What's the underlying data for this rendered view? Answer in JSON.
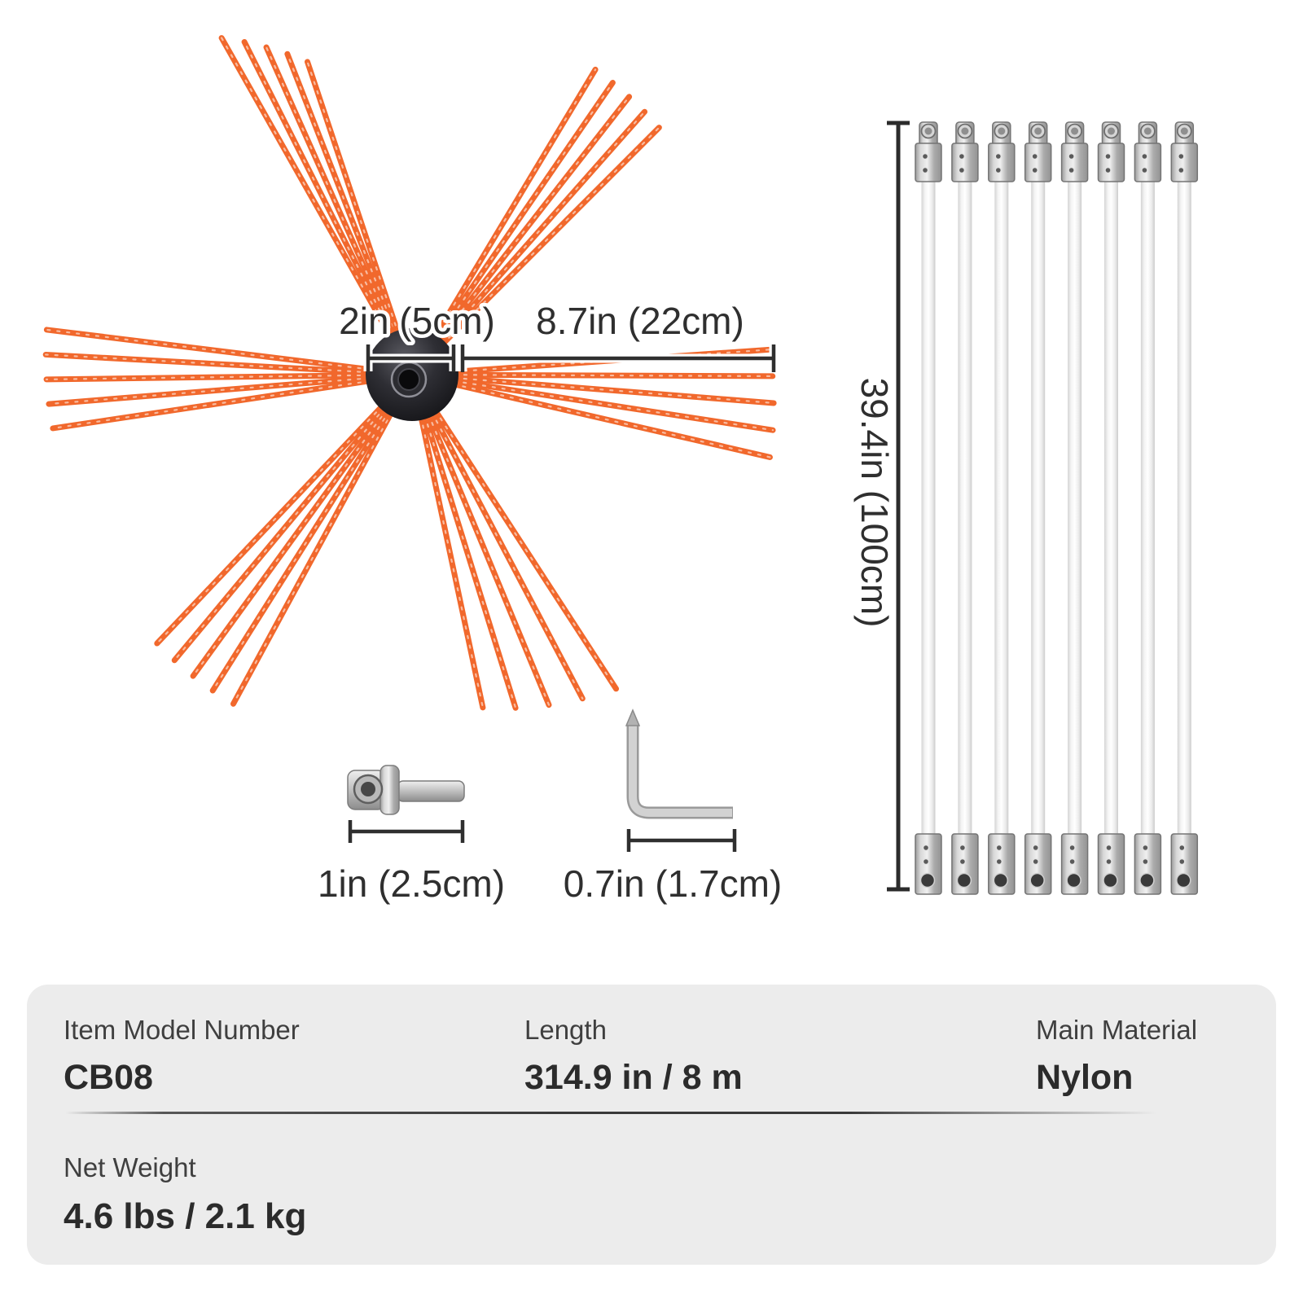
{
  "brush": {
    "hub_dim_label": "2in (5cm)",
    "bristle_dim_label": "8.7in (22cm)"
  },
  "rods": {
    "count": 8,
    "length_label": "39.4in (100cm)"
  },
  "adapter": {
    "dim_label": "1in (2.5cm)"
  },
  "hex_key": {
    "dim_label": "0.7in (1.7cm)"
  },
  "specs": {
    "row1": [
      {
        "label": "Item Model Number",
        "value": "CB08"
      },
      {
        "label": "Length",
        "value": "314.9 in / 8 m"
      },
      {
        "label": "Main Material",
        "value": "Nylon"
      }
    ],
    "row2": [
      {
        "label": "Net Weight",
        "value": "4.6 lbs / 2.1 kg"
      }
    ]
  },
  "colors": {
    "bristle_orange": "#f1682c",
    "dim_text": "#2f2f2f",
    "panel_bg": "#ececec",
    "value_text": "#2b2b2b"
  }
}
